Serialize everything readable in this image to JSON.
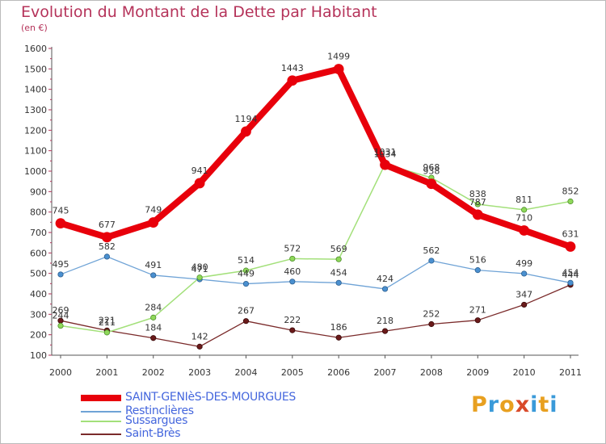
{
  "title": "Evolution du Montant de la Dette par Habitant",
  "subtitle": "(en €)",
  "brand": {
    "letters": [
      "P",
      "r",
      "o",
      "x",
      "i",
      "t",
      "i"
    ],
    "colors": [
      "#e8a020",
      "#3a9ad9",
      "#e8a020",
      "#d94a2a",
      "#3a9ad9",
      "#e8a020",
      "#3a9ad9"
    ]
  },
  "chart_data": {
    "type": "line",
    "title": "Evolution du Montant de la Dette par Habitant",
    "ylabel": "(en €)",
    "xlabel": "",
    "x": [
      "2000",
      "2001",
      "2002",
      "2003",
      "2004",
      "2005",
      "2006",
      "2007",
      "2008",
      "2009",
      "2010",
      "2011"
    ],
    "ylim": [
      100,
      1600
    ],
    "yticks": [
      "100",
      "200",
      "300",
      "400",
      "500",
      "600",
      "700",
      "800",
      "900",
      "1000",
      "1100",
      "1200",
      "1300",
      "1400",
      "1500",
      "1600"
    ],
    "grid": false,
    "legend_position": "bottom-left",
    "series": [
      {
        "name": "SAINT-GENIèS-DES-MOURGUES",
        "color": "#e8000b",
        "values": [
          745,
          677,
          749,
          941,
          1194,
          1443,
          1499,
          1031,
          938,
          787,
          710,
          631
        ],
        "labels": [
          "745",
          "677",
          "749",
          "941",
          "1194",
          "1443",
          "1499",
          "1031",
          "938",
          "787",
          "710",
          "631"
        ]
      },
      {
        "name": "Restinclières",
        "color": "#6fa3d6",
        "values": [
          495,
          582,
          491,
          471,
          449,
          460,
          454,
          424,
          562,
          516,
          499,
          454
        ],
        "labels": [
          "495",
          "582",
          "491",
          "471",
          "449",
          "460",
          "454",
          "424",
          "562",
          "516",
          "499",
          "454"
        ]
      },
      {
        "name": "Sussargues",
        "color": "#a3e07a",
        "values": [
          244,
          211,
          284,
          480,
          514,
          572,
          569,
          1034,
          968,
          838,
          811,
          852
        ],
        "labels": [
          "244",
          "211",
          "284",
          "480",
          "514",
          "572",
          "569",
          "1034",
          "968",
          "838",
          "811",
          "852"
        ]
      },
      {
        "name": "Saint-Brès",
        "color": "#7a2a2a",
        "values": [
          269,
          221,
          184,
          142,
          267,
          222,
          186,
          218,
          252,
          271,
          347,
          444
        ],
        "labels": [
          "269",
          "221",
          "184",
          "142",
          "267",
          "222",
          "186",
          "218",
          "252",
          "271",
          "347",
          "444"
        ]
      }
    ]
  }
}
